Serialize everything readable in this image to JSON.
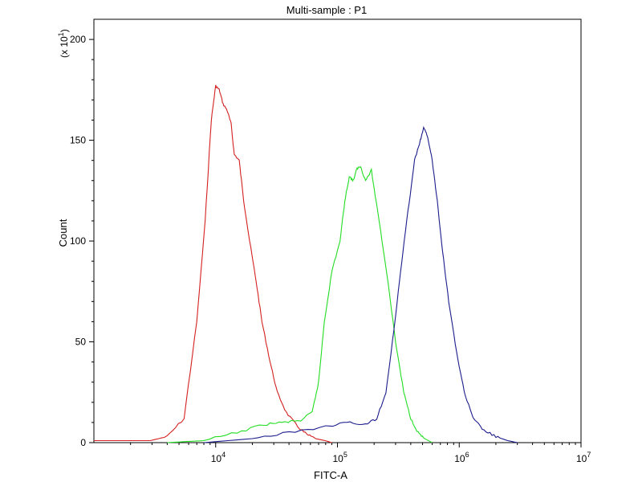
{
  "chart_data": {
    "type": "line",
    "title": "Multi-sample : P1",
    "xlabel": "FITC-A",
    "ylabel": "Count",
    "y_scale_label": "(x 10",
    "y_scale_exp": "1",
    "y_scale_close": ")",
    "x_scale": "log",
    "xlim": [
      1000,
      10000000
    ],
    "ylim": [
      0,
      210
    ],
    "grid": false,
    "y_ticks": [
      0,
      50,
      100,
      150,
      200
    ],
    "y_tick_labels": [
      "0",
      "50",
      "100",
      "150",
      "200"
    ],
    "x_ticks": [
      10000,
      100000,
      1000000,
      10000000
    ],
    "x_tick_labels": [
      {
        "base": "10",
        "exp": "4"
      },
      {
        "base": "10",
        "exp": "5"
      },
      {
        "base": "10",
        "exp": "6"
      },
      {
        "base": "10",
        "exp": "7"
      }
    ],
    "series": [
      {
        "color": "#d42020",
        "x": [
          1000,
          2900,
          4000,
          5500,
          7000,
          8200,
          9200,
          10000,
          10700,
          11500,
          12400,
          13400,
          14200,
          15600,
          17000,
          19000,
          21500,
          24000,
          28000,
          32000,
          38000,
          47000,
          56000,
          66000,
          79000,
          90000
        ],
        "y": [
          1,
          1,
          3,
          12,
          60,
          110,
          160,
          177,
          175,
          168,
          165,
          158,
          143,
          140,
          120,
          100,
          80,
          60,
          40,
          25,
          15,
          8,
          4,
          2,
          1,
          0
        ]
      },
      {
        "color": "#22dd22",
        "x": [
          4000,
          8000,
          15000,
          25000,
          35000,
          50000,
          62000,
          70000,
          78000,
          90000,
          105000,
          115000,
          125000,
          135000,
          145000,
          155000,
          170000,
          190000,
          220000,
          260000,
          300000,
          350000,
          400000,
          460000,
          520000,
          600000
        ],
        "y": [
          0,
          1,
          5,
          9,
          10,
          11,
          15,
          30,
          60,
          85,
          100,
          120,
          132,
          130,
          136,
          137,
          130,
          135,
          110,
          80,
          50,
          25,
          12,
          5,
          2,
          0
        ]
      },
      {
        "color": "#1c1c8c",
        "x": [
          8000,
          20000,
          40000,
          80000,
          120000,
          170000,
          210000,
          250000,
          290000,
          330000,
          380000,
          430000,
          480000,
          510000,
          550000,
          600000,
          660000,
          730000,
          820000,
          950000,
          1100000,
          1300000,
          1600000,
          2000000,
          2500000,
          3000000
        ],
        "y": [
          0,
          2,
          5,
          8,
          10,
          9,
          12,
          25,
          55,
          85,
          115,
          140,
          150,
          156,
          152,
          140,
          120,
          95,
          70,
          45,
          25,
          12,
          6,
          3,
          1,
          0
        ]
      }
    ]
  }
}
